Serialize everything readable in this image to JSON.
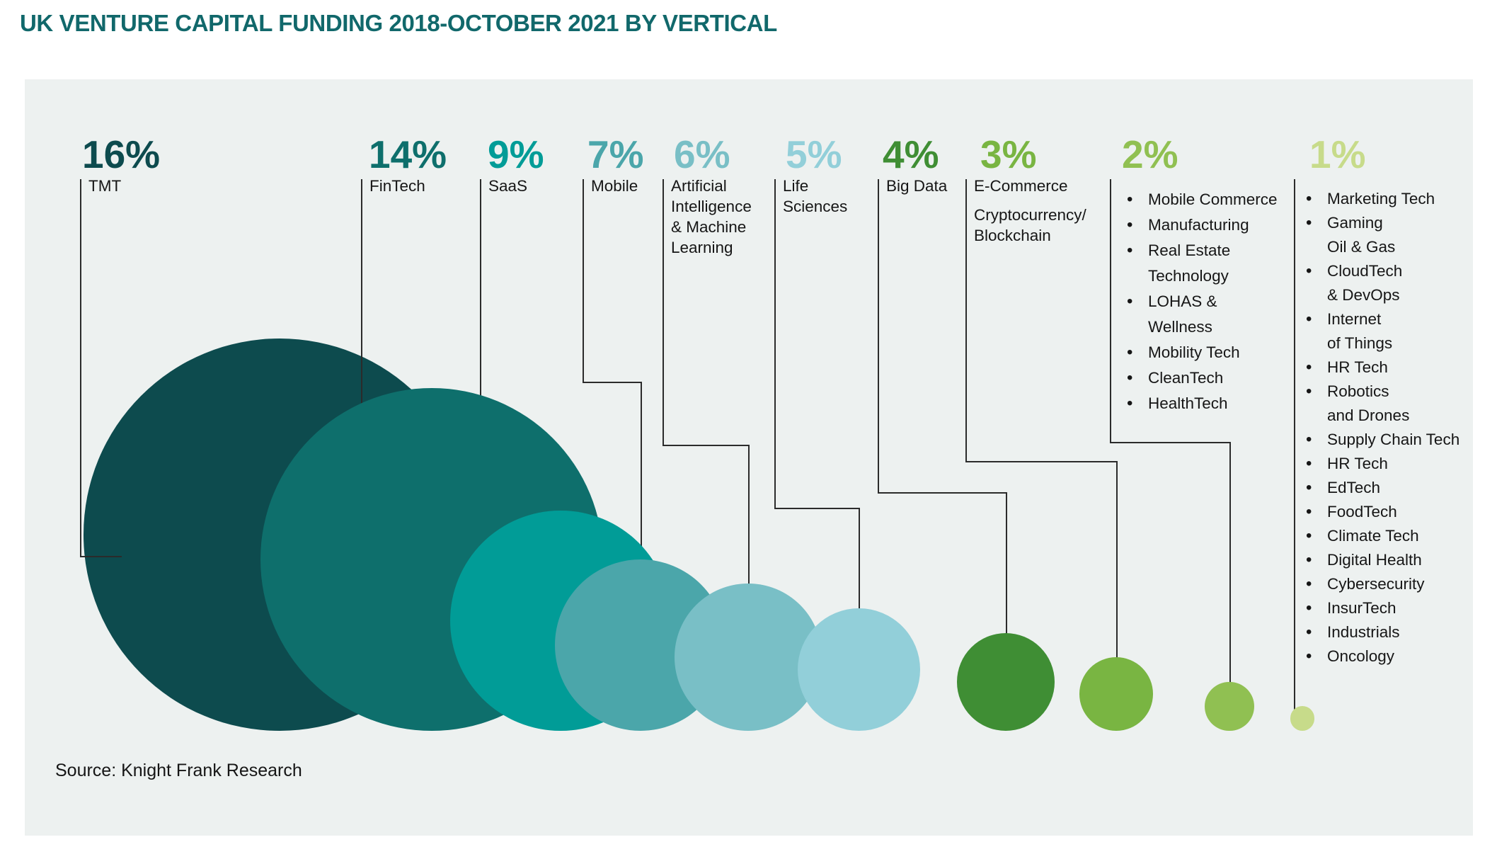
{
  "page": {
    "title": "UK VENTURE CAPITAL FUNDING 2018-OCTOBER 2021 BY VERTICAL",
    "source_note": "Source: Knight Frank Research"
  },
  "colors": {
    "page_background": "#ffffff",
    "panel_background": "#edf1f0",
    "title_text": "#11686b",
    "label_text": "#161616",
    "leader_line": "#2b2b2b"
  },
  "icons": {
    "bullet": "•"
  },
  "chart_data": {
    "type": "bubble",
    "title": "UK VENTURE CAPITAL FUNDING 2018-OCTOBER 2021 BY VERTICAL",
    "unit": "% of UK venture capital funding",
    "source": "Source: Knight Frank Research",
    "legend_position": "top",
    "grid": false,
    "categories": [
      "TMT",
      "FinTech",
      "SaaS",
      "Mobile",
      "Artificial Intelligence & Machine Learning",
      "Life Sciences",
      "Big Data",
      "E-Commerce Cryptocurrency/Blockchain",
      "2% verticals",
      "1% verticals"
    ],
    "values": [
      16,
      14,
      9,
      7,
      6,
      5,
      4,
      3,
      2,
      1
    ],
    "series": [
      {
        "name": "TMT",
        "value": 16,
        "pct_label": "16%",
        "color": "#0d4b4e",
        "label_paragraphs": [
          [
            "TMT"
          ]
        ]
      },
      {
        "name": "FinTech",
        "value": 14,
        "pct_label": "14%",
        "color": "#0e6f6c",
        "label_paragraphs": [
          [
            "FinTech"
          ]
        ]
      },
      {
        "name": "SaaS",
        "value": 9,
        "pct_label": "9%",
        "color": "#019c97",
        "label_paragraphs": [
          [
            "SaaS"
          ]
        ]
      },
      {
        "name": "Mobile",
        "value": 7,
        "pct_label": "7%",
        "color": "#4ba6aa",
        "label_paragraphs": [
          [
            "Mobile"
          ]
        ]
      },
      {
        "name": "Artificial Intelligence & Machine Learning",
        "value": 6,
        "pct_label": "6%",
        "color": "#79bfc6",
        "label_paragraphs": [
          [
            "Artificial",
            "Intelligence",
            "& Machine",
            "Learning"
          ]
        ]
      },
      {
        "name": "Life Sciences",
        "value": 5,
        "pct_label": "5%",
        "color": "#92cfd9",
        "label_paragraphs": [
          [
            "Life",
            "Sciences"
          ]
        ]
      },
      {
        "name": "Big Data",
        "value": 4,
        "pct_label": "4%",
        "color": "#3f8e34",
        "label_paragraphs": [
          [
            "Big Data"
          ]
        ]
      },
      {
        "name": "E-Commerce Cryptocurrency/Blockchain",
        "value": 3,
        "pct_label": "3%",
        "color": "#79b542",
        "label_paragraphs": [
          [
            "E-Commerce"
          ],
          [
            "Cryptocurrency/",
            "Blockchain"
          ]
        ]
      },
      {
        "name": "2% verticals",
        "value": 2,
        "pct_label": "2%",
        "color": "#90c052",
        "items": [
          {
            "bullet": true,
            "text": "Mobile Commerce"
          },
          {
            "bullet": true,
            "text": "Manufacturing"
          },
          {
            "bullet": true,
            "text": "Real Estate"
          },
          {
            "bullet": false,
            "text": "Technology"
          },
          {
            "bullet": true,
            "text": "LOHAS &"
          },
          {
            "bullet": false,
            "text": "Wellness"
          },
          {
            "bullet": true,
            "text": "Mobility Tech"
          },
          {
            "bullet": true,
            "text": "CleanTech"
          },
          {
            "bullet": true,
            "text": "HealthTech"
          }
        ]
      },
      {
        "name": "1% verticals",
        "value": 1,
        "pct_label": "1%",
        "color": "#c7db8a",
        "items": [
          {
            "bullet": true,
            "text": "Marketing Tech"
          },
          {
            "bullet": true,
            "text": "Gaming"
          },
          {
            "bullet": false,
            "text": "Oil & Gas"
          },
          {
            "bullet": true,
            "text": "CloudTech"
          },
          {
            "bullet": false,
            "text": "& DevOps"
          },
          {
            "bullet": true,
            "text": "Internet"
          },
          {
            "bullet": false,
            "text": "of Things"
          },
          {
            "bullet": true,
            "text": "HR Tech"
          },
          {
            "bullet": true,
            "text": "Robotics"
          },
          {
            "bullet": false,
            "text": "and Drones"
          },
          {
            "bullet": true,
            "text": "Supply Chain Tech"
          },
          {
            "bullet": true,
            "text": "HR Tech"
          },
          {
            "bullet": true,
            "text": "EdTech"
          },
          {
            "bullet": true,
            "text": "FoodTech"
          },
          {
            "bullet": true,
            "text": "Climate Tech"
          },
          {
            "bullet": true,
            "text": "Digital Health"
          },
          {
            "bullet": true,
            "text": "Cybersecurity"
          },
          {
            "bullet": true,
            "text": "InsurTech"
          },
          {
            "bullet": true,
            "text": "Industrials"
          },
          {
            "bullet": true,
            "text": "Oncology"
          }
        ]
      }
    ]
  }
}
